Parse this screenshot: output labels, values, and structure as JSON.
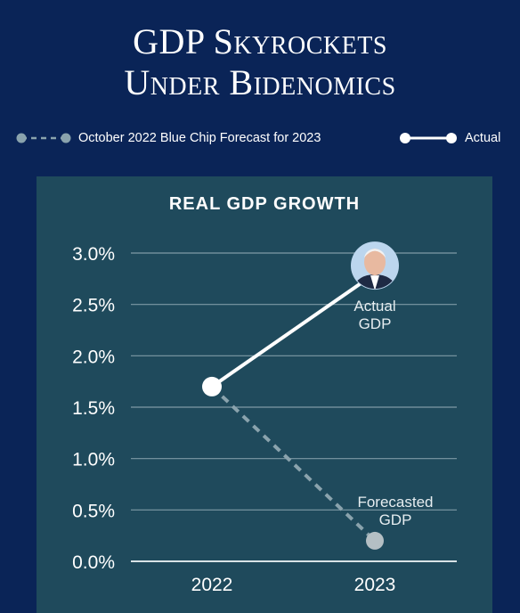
{
  "title": {
    "line1": "GDP Skyrockets",
    "line2": "Under Bidenomics"
  },
  "legend": {
    "forecast_label": "October 2022 Blue Chip Forecast for 2023",
    "actual_label": "Actual"
  },
  "colors": {
    "background": "#0a2457",
    "panel": "#1f4a5c",
    "actual_line": "#ffffff",
    "forecast_line": "#8aa3ad",
    "forecast_point": "#b4bfc4",
    "grid": "#7f9aa5"
  },
  "chart_data": {
    "type": "line",
    "title": "REAL GDP GROWTH",
    "categories": [
      "2022",
      "2023"
    ],
    "ylim": [
      0,
      3.0
    ],
    "yticks": [
      "0.0%",
      "0.5%",
      "1.0%",
      "1.5%",
      "2.0%",
      "2.5%",
      "3.0%"
    ],
    "ytick_values": [
      0,
      0.5,
      1.0,
      1.5,
      2.0,
      2.5,
      3.0
    ],
    "grid": true,
    "series": [
      {
        "name": "Actual",
        "style": "solid",
        "values": [
          1.7,
          2.8
        ],
        "annotation": [
          "Actual",
          "GDP"
        ],
        "marker_icon": "portrait-icon"
      },
      {
        "name": "October 2022 Blue Chip Forecast for 2023",
        "style": "dashed",
        "values": [
          1.7,
          0.2
        ],
        "annotation": [
          "Forecasted",
          "GDP"
        ]
      }
    ]
  }
}
